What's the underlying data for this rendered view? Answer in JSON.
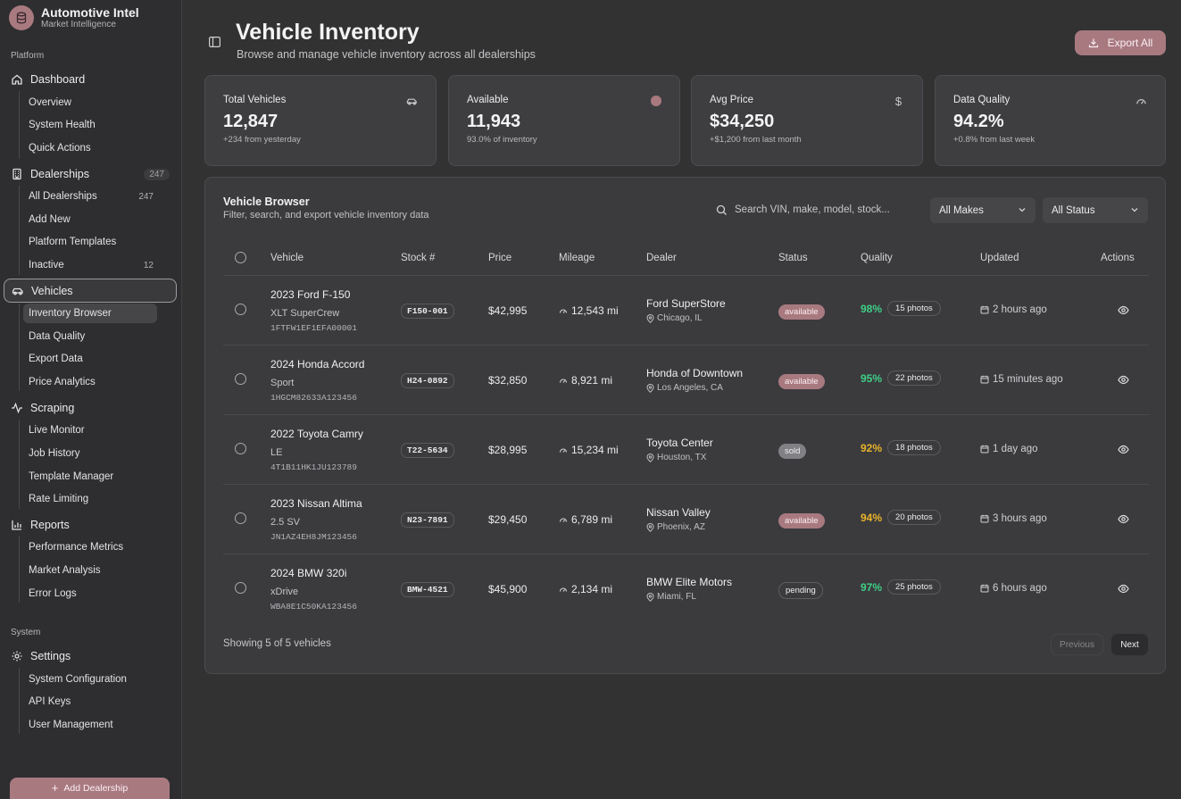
{
  "app": {
    "title": "Automotive Intel",
    "subtitle": "Market Intelligence"
  },
  "sidebar": {
    "platform_label": "Platform",
    "system_label": "System",
    "sections": {
      "dashboard": {
        "label": "Dashboard",
        "items": [
          "Overview",
          "System Health",
          "Quick Actions"
        ]
      },
      "dealerships": {
        "label": "Dealerships",
        "count": "247",
        "items": [
          {
            "label": "All Dealerships",
            "count": "247"
          },
          {
            "label": "Add New",
            "count": ""
          },
          {
            "label": "Platform Templates",
            "count": ""
          },
          {
            "label": "Inactive",
            "count": "12"
          }
        ]
      },
      "vehicles": {
        "label": "Vehicles",
        "items": [
          "Inventory Browser",
          "Data Quality",
          "Export Data",
          "Price Analytics"
        ]
      },
      "scraping": {
        "label": "Scraping",
        "items": [
          "Live Monitor",
          "Job History",
          "Template Manager",
          "Rate Limiting"
        ]
      },
      "reports": {
        "label": "Reports",
        "items": [
          "Performance Metrics",
          "Market Analysis",
          "Error Logs"
        ]
      },
      "settings": {
        "label": "Settings",
        "items": [
          "System Configuration",
          "API Keys",
          "User Management"
        ]
      }
    },
    "add_dealership": "Add Dealership"
  },
  "header": {
    "title": "Vehicle Inventory",
    "subtitle": "Browse and manage vehicle inventory across all dealerships",
    "export_label": "Export All"
  },
  "stats": [
    {
      "label": "Total Vehicles",
      "value": "12,847",
      "note": "+234 from yesterday",
      "icon": "car-icon"
    },
    {
      "label": "Available",
      "value": "11,943",
      "note": "93.0% of inventory",
      "icon": "dot-icon"
    },
    {
      "label": "Avg Price",
      "value": "$34,250",
      "note": "+$1,200 from last month",
      "icon": "dollar-icon"
    },
    {
      "label": "Data Quality",
      "value": "94.2%",
      "note": "+0.8% from last week",
      "icon": "gauge-icon"
    }
  ],
  "browser": {
    "title": "Vehicle Browser",
    "subtitle": "Filter, search, and export vehicle inventory data",
    "search_placeholder": "Search VIN, make, model, stock...",
    "makes_filter": "All Makes",
    "status_filter": "All Status",
    "columns": [
      "Vehicle",
      "Stock #",
      "Price",
      "Mileage",
      "Dealer",
      "Status",
      "Quality",
      "Updated",
      "Actions"
    ],
    "rows": [
      {
        "name": "2023 Ford F-150",
        "trim": "XLT SuperCrew",
        "vin": "1FTFW1EF1EFA00001",
        "stock": "F150-001",
        "price": "$42,995",
        "mileage": "12,543 mi",
        "dealer": "Ford SuperStore",
        "location": "Chicago, IL",
        "status": "available",
        "quality": "98%",
        "quality_color": "#3fcf86",
        "photos": "15 photos",
        "updated": "2 hours ago"
      },
      {
        "name": "2024 Honda Accord",
        "trim": "Sport",
        "vin": "1HGCM82633A123456",
        "stock": "H24-0892",
        "price": "$32,850",
        "mileage": "8,921 mi",
        "dealer": "Honda of Downtown",
        "location": "Los Angeles, CA",
        "status": "available",
        "quality": "95%",
        "quality_color": "#3fcf86",
        "photos": "22 photos",
        "updated": "15 minutes ago"
      },
      {
        "name": "2022 Toyota Camry",
        "trim": "LE",
        "vin": "4T1B11HK1JU123789",
        "stock": "T22-5634",
        "price": "$28,995",
        "mileage": "15,234 mi",
        "dealer": "Toyota Center",
        "location": "Houston, TX",
        "status": "sold",
        "quality": "92%",
        "quality_color": "#e8b42a",
        "photos": "18 photos",
        "updated": "1 day ago"
      },
      {
        "name": "2023 Nissan Altima",
        "trim": "2.5 SV",
        "vin": "JN1AZ4EH8JM123456",
        "stock": "N23-7891",
        "price": "$29,450",
        "mileage": "6,789 mi",
        "dealer": "Nissan Valley",
        "location": "Phoenix, AZ",
        "status": "available",
        "quality": "94%",
        "quality_color": "#e8b42a",
        "photos": "20 photos",
        "updated": "3 hours ago"
      },
      {
        "name": "2024 BMW 320i",
        "trim": "xDrive",
        "vin": "WBA8E1C50KA123456",
        "stock": "BMW-4521",
        "price": "$45,900",
        "mileage": "2,134 mi",
        "dealer": "BMW Elite Motors",
        "location": "Miami, FL",
        "status": "pending",
        "quality": "97%",
        "quality_color": "#3fcf86",
        "photos": "25 photos",
        "updated": "6 hours ago"
      }
    ],
    "showing": "Showing 5 of 5 vehicles",
    "prev_label": "Previous",
    "next_label": "Next"
  },
  "colors": {
    "accent": "#a87a80",
    "background": "#323233",
    "card": "#3e3e41"
  }
}
